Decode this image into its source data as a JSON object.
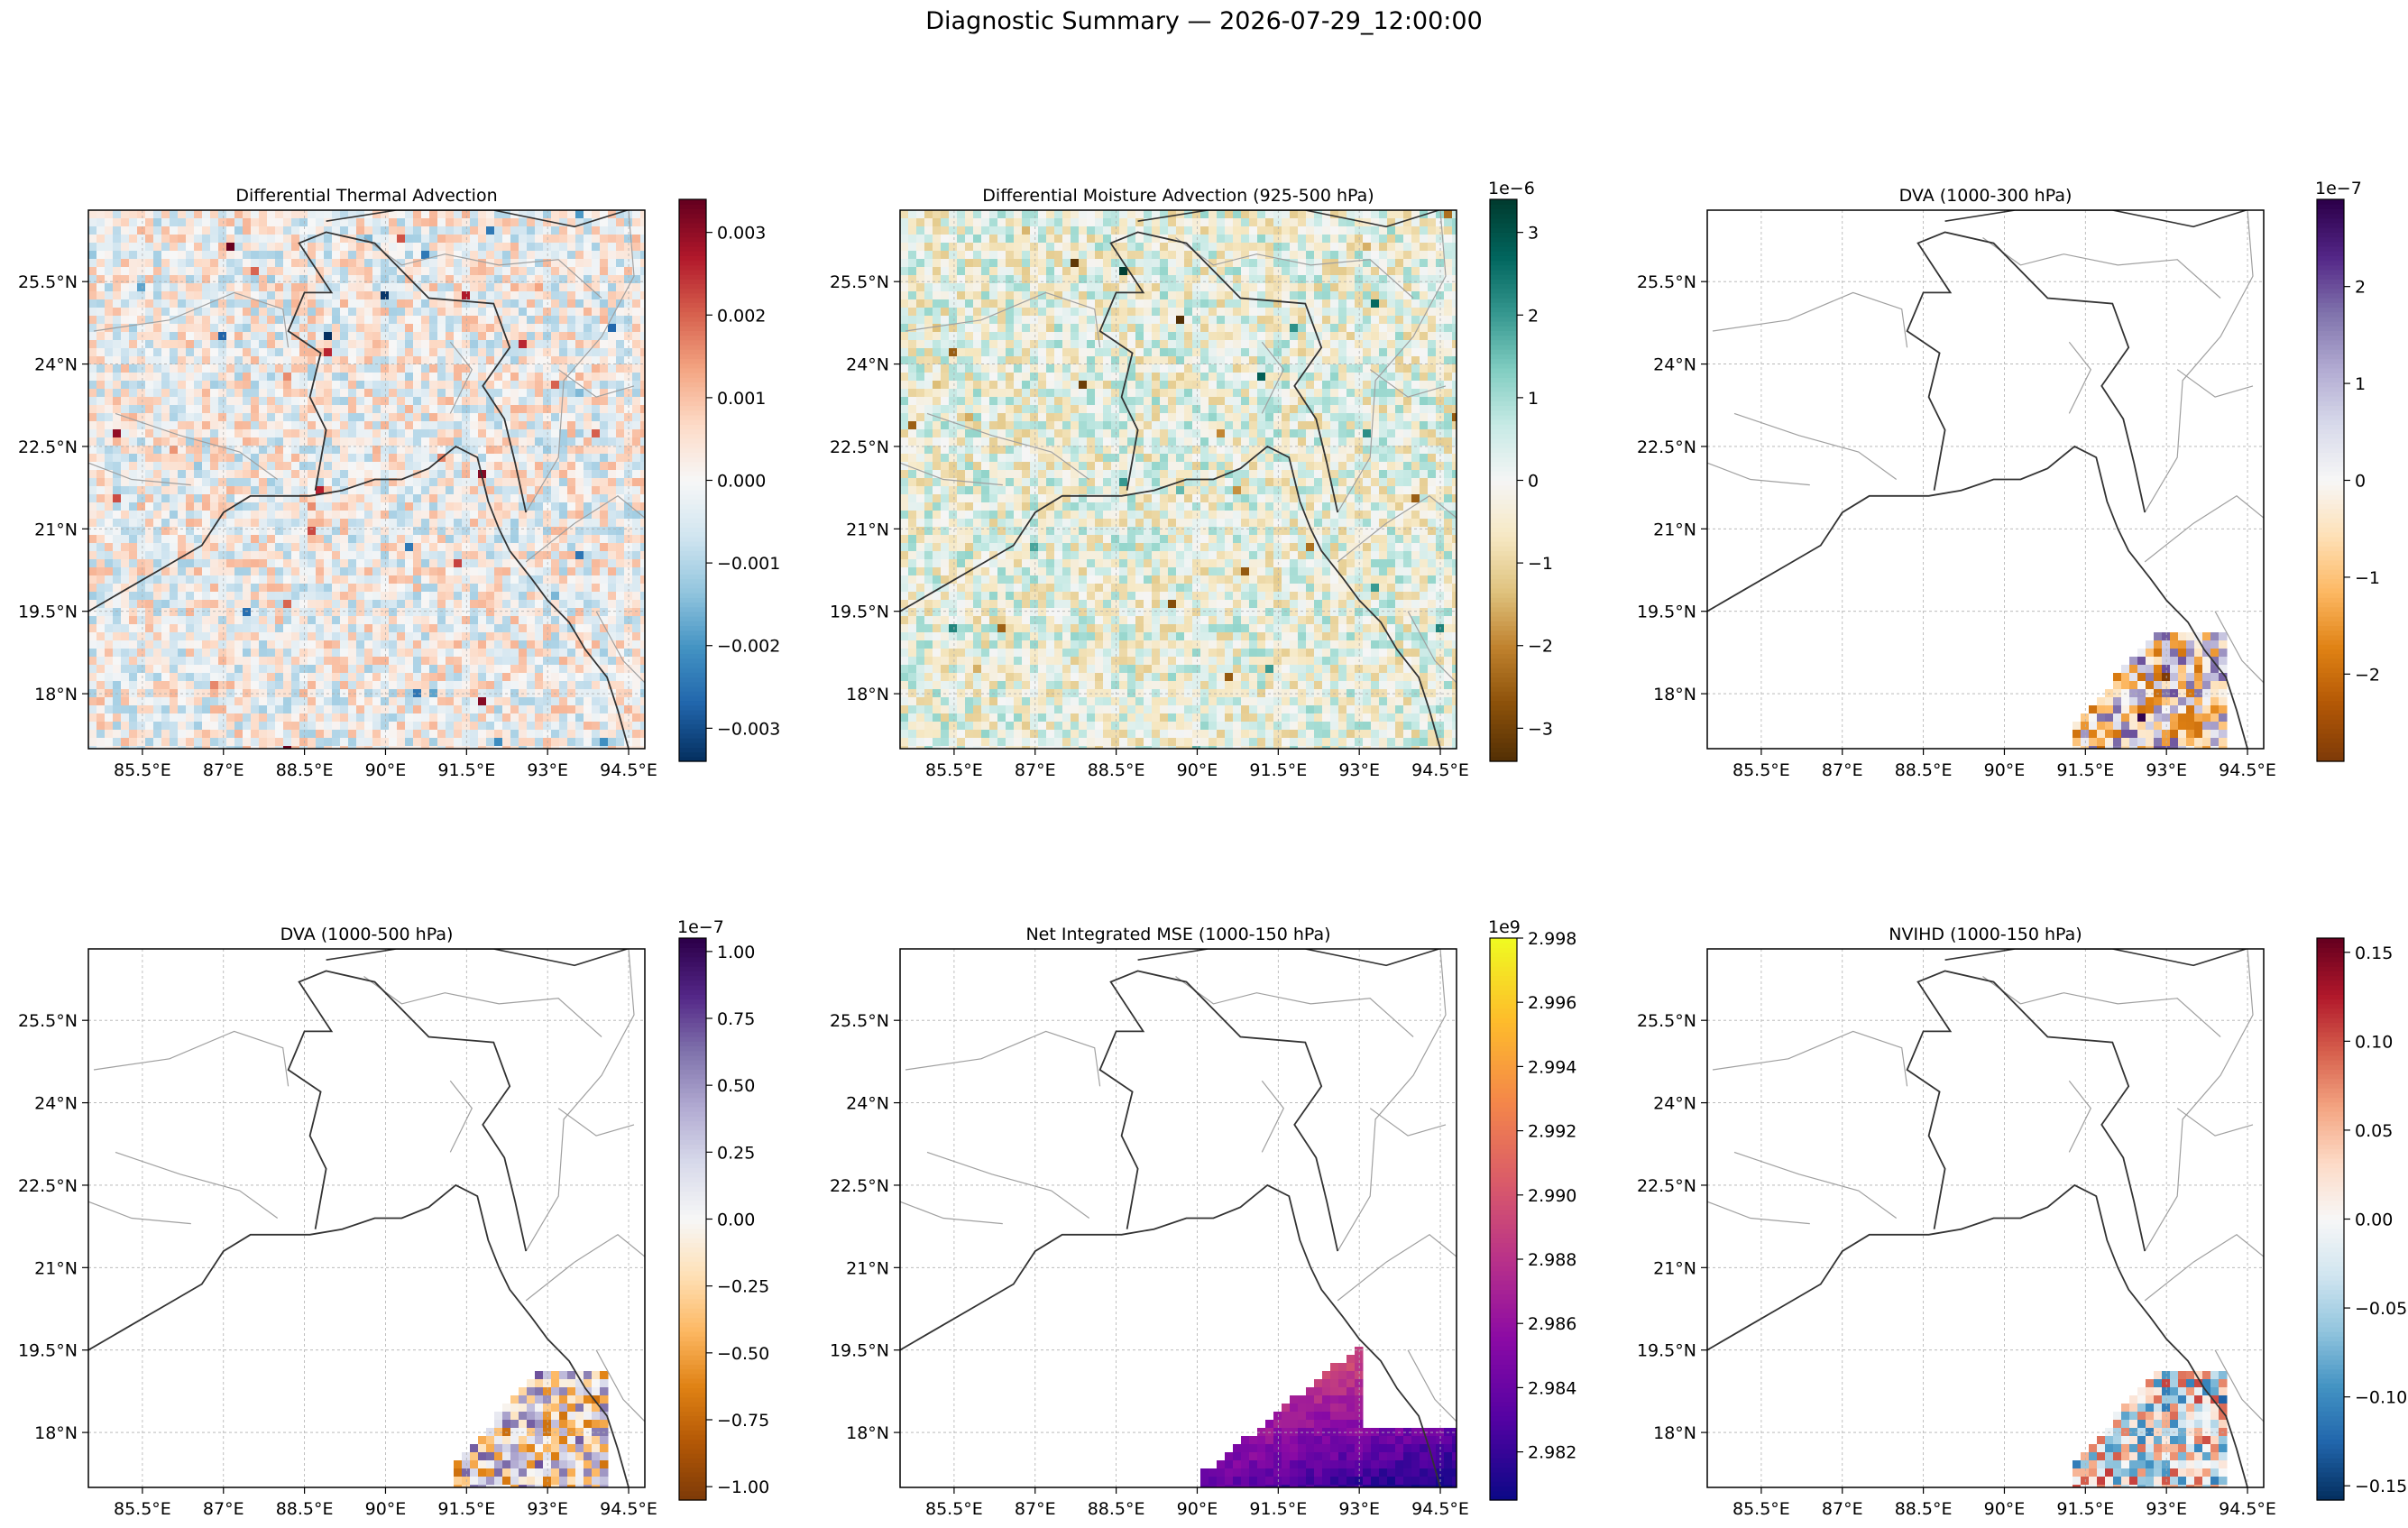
{
  "suptitle": "Diagnostic Summary — 2026-07-29_12:00:00",
  "chart_data": [
    {
      "type": "heatmap",
      "title": "Differential Thermal Advection",
      "xlabel": "",
      "ylabel": "",
      "x_ticks": [
        "85.5°E",
        "87°E",
        "88.5°E",
        "90°E",
        "91.5°E",
        "93°E",
        "94.5°E"
      ],
      "y_ticks": [
        "25.5°N",
        "24°N",
        "22.5°N",
        "21°N",
        "19.5°N",
        "18°N"
      ],
      "xlim": [
        84.5,
        94.8
      ],
      "ylim": [
        17.0,
        26.8
      ],
      "grid": true,
      "colormap": "RdBu_r",
      "colorbar": {
        "range": [
          -0.0034,
          0.0034
        ],
        "ticks": [
          -0.003,
          -0.002,
          -0.001,
          0.0,
          0.001,
          0.002,
          0.003
        ],
        "tick_labels": [
          "−0.003",
          "−0.002",
          "−0.001",
          "0.000",
          "0.001",
          "0.002",
          "0.003"
        ],
        "offset": ""
      },
      "field": "noise",
      "coverage": "full"
    },
    {
      "type": "heatmap",
      "title": "Differential Moisture Advection (925-500 hPa)",
      "xlabel": "",
      "ylabel": "",
      "x_ticks": [
        "85.5°E",
        "87°E",
        "88.5°E",
        "90°E",
        "91.5°E",
        "93°E",
        "94.5°E"
      ],
      "y_ticks": [
        "25.5°N",
        "24°N",
        "22.5°N",
        "21°N",
        "19.5°N",
        "18°N"
      ],
      "xlim": [
        84.5,
        94.8
      ],
      "ylim": [
        17.0,
        26.8
      ],
      "grid": true,
      "colormap": "BrBG",
      "colorbar": {
        "range": [
          -3.4,
          3.4
        ],
        "ticks": [
          -3,
          -2,
          -1,
          0,
          1,
          2,
          3
        ],
        "tick_labels": [
          "−3",
          "−2",
          "−1",
          "0",
          "1",
          "2",
          "3"
        ],
        "offset": "1e−6"
      },
      "field": "noise",
      "coverage": "full"
    },
    {
      "type": "heatmap",
      "title": "DVA (1000-300 hPa)",
      "xlabel": "",
      "ylabel": "",
      "x_ticks": [
        "85.5°E",
        "87°E",
        "88.5°E",
        "90°E",
        "91.5°E",
        "93°E",
        "94.5°E"
      ],
      "y_ticks": [
        "25.5°N",
        "24°N",
        "22.5°N",
        "21°N",
        "19.5°N",
        "18°N"
      ],
      "xlim": [
        84.5,
        94.8
      ],
      "ylim": [
        17.0,
        26.8
      ],
      "grid": true,
      "colormap": "PuOr",
      "colorbar": {
        "range": [
          -2.9,
          2.9
        ],
        "ticks": [
          -2,
          -1,
          0,
          1,
          2
        ],
        "tick_labels": [
          "−2",
          "−1",
          "0",
          "1",
          "2"
        ],
        "offset": "1e−7"
      },
      "field": "noise",
      "coverage": "southeast"
    },
    {
      "type": "heatmap",
      "title": "DVA (1000-500 hPa)",
      "xlabel": "",
      "ylabel": "",
      "x_ticks": [
        "85.5°E",
        "87°E",
        "88.5°E",
        "90°E",
        "91.5°E",
        "93°E",
        "94.5°E"
      ],
      "y_ticks": [
        "25.5°N",
        "24°N",
        "22.5°N",
        "21°N",
        "19.5°N",
        "18°N"
      ],
      "xlim": [
        84.5,
        94.8
      ],
      "ylim": [
        17.0,
        26.8
      ],
      "grid": true,
      "colormap": "PuOr",
      "colorbar": {
        "range": [
          -1.05,
          1.05
        ],
        "ticks": [
          -1.0,
          -0.75,
          -0.5,
          -0.25,
          0.0,
          0.25,
          0.5,
          0.75,
          1.0
        ],
        "tick_labels": [
          "−1.00",
          "−0.75",
          "−0.50",
          "−0.25",
          "0.00",
          "0.25",
          "0.50",
          "0.75",
          "1.00"
        ],
        "offset": "1e−7"
      },
      "field": "noise",
      "coverage": "southeast"
    },
    {
      "type": "heatmap",
      "title": "Net Integrated MSE (1000-150 hPa)",
      "xlabel": "",
      "ylabel": "",
      "x_ticks": [
        "85.5°E",
        "87°E",
        "88.5°E",
        "90°E",
        "91.5°E",
        "93°E",
        "94.5°E"
      ],
      "y_ticks": [
        "25.5°N",
        "24°N",
        "22.5°N",
        "21°N",
        "19.5°N",
        "18°N"
      ],
      "xlim": [
        84.5,
        94.8
      ],
      "ylim": [
        17.0,
        26.8
      ],
      "grid": true,
      "colormap": "plasma",
      "colorbar": {
        "range": [
          2.9805,
          2.998
        ],
        "ticks": [
          2.982,
          2.984,
          2.986,
          2.988,
          2.99,
          2.992,
          2.994,
          2.996,
          2.998
        ],
        "tick_labels": [
          "2.982",
          "2.984",
          "2.986",
          "2.988",
          "2.990",
          "2.992",
          "2.994",
          "2.996",
          "2.998"
        ],
        "offset": "1e9"
      },
      "field": "gradient",
      "coverage": "southeast-wide"
    },
    {
      "type": "heatmap",
      "title": "NVIHD (1000-150 hPa)",
      "xlabel": "",
      "ylabel": "",
      "x_ticks": [
        "85.5°E",
        "87°E",
        "88.5°E",
        "90°E",
        "91.5°E",
        "93°E",
        "94.5°E"
      ],
      "y_ticks": [
        "25.5°N",
        "24°N",
        "22.5°N",
        "21°N",
        "19.5°N",
        "18°N"
      ],
      "xlim": [
        84.5,
        94.8
      ],
      "ylim": [
        17.0,
        26.8
      ],
      "grid": true,
      "colormap": "RdBu_r",
      "colorbar": {
        "range": [
          -0.158,
          0.158
        ],
        "ticks": [
          -0.15,
          -0.1,
          -0.05,
          0.0,
          0.05,
          0.1,
          0.15
        ],
        "tick_labels": [
          "−0.15",
          "−0.10",
          "−0.05",
          "0.00",
          "0.05",
          "0.10",
          "0.15"
        ],
        "offset": ""
      },
      "field": "noise",
      "coverage": "southeast"
    }
  ]
}
